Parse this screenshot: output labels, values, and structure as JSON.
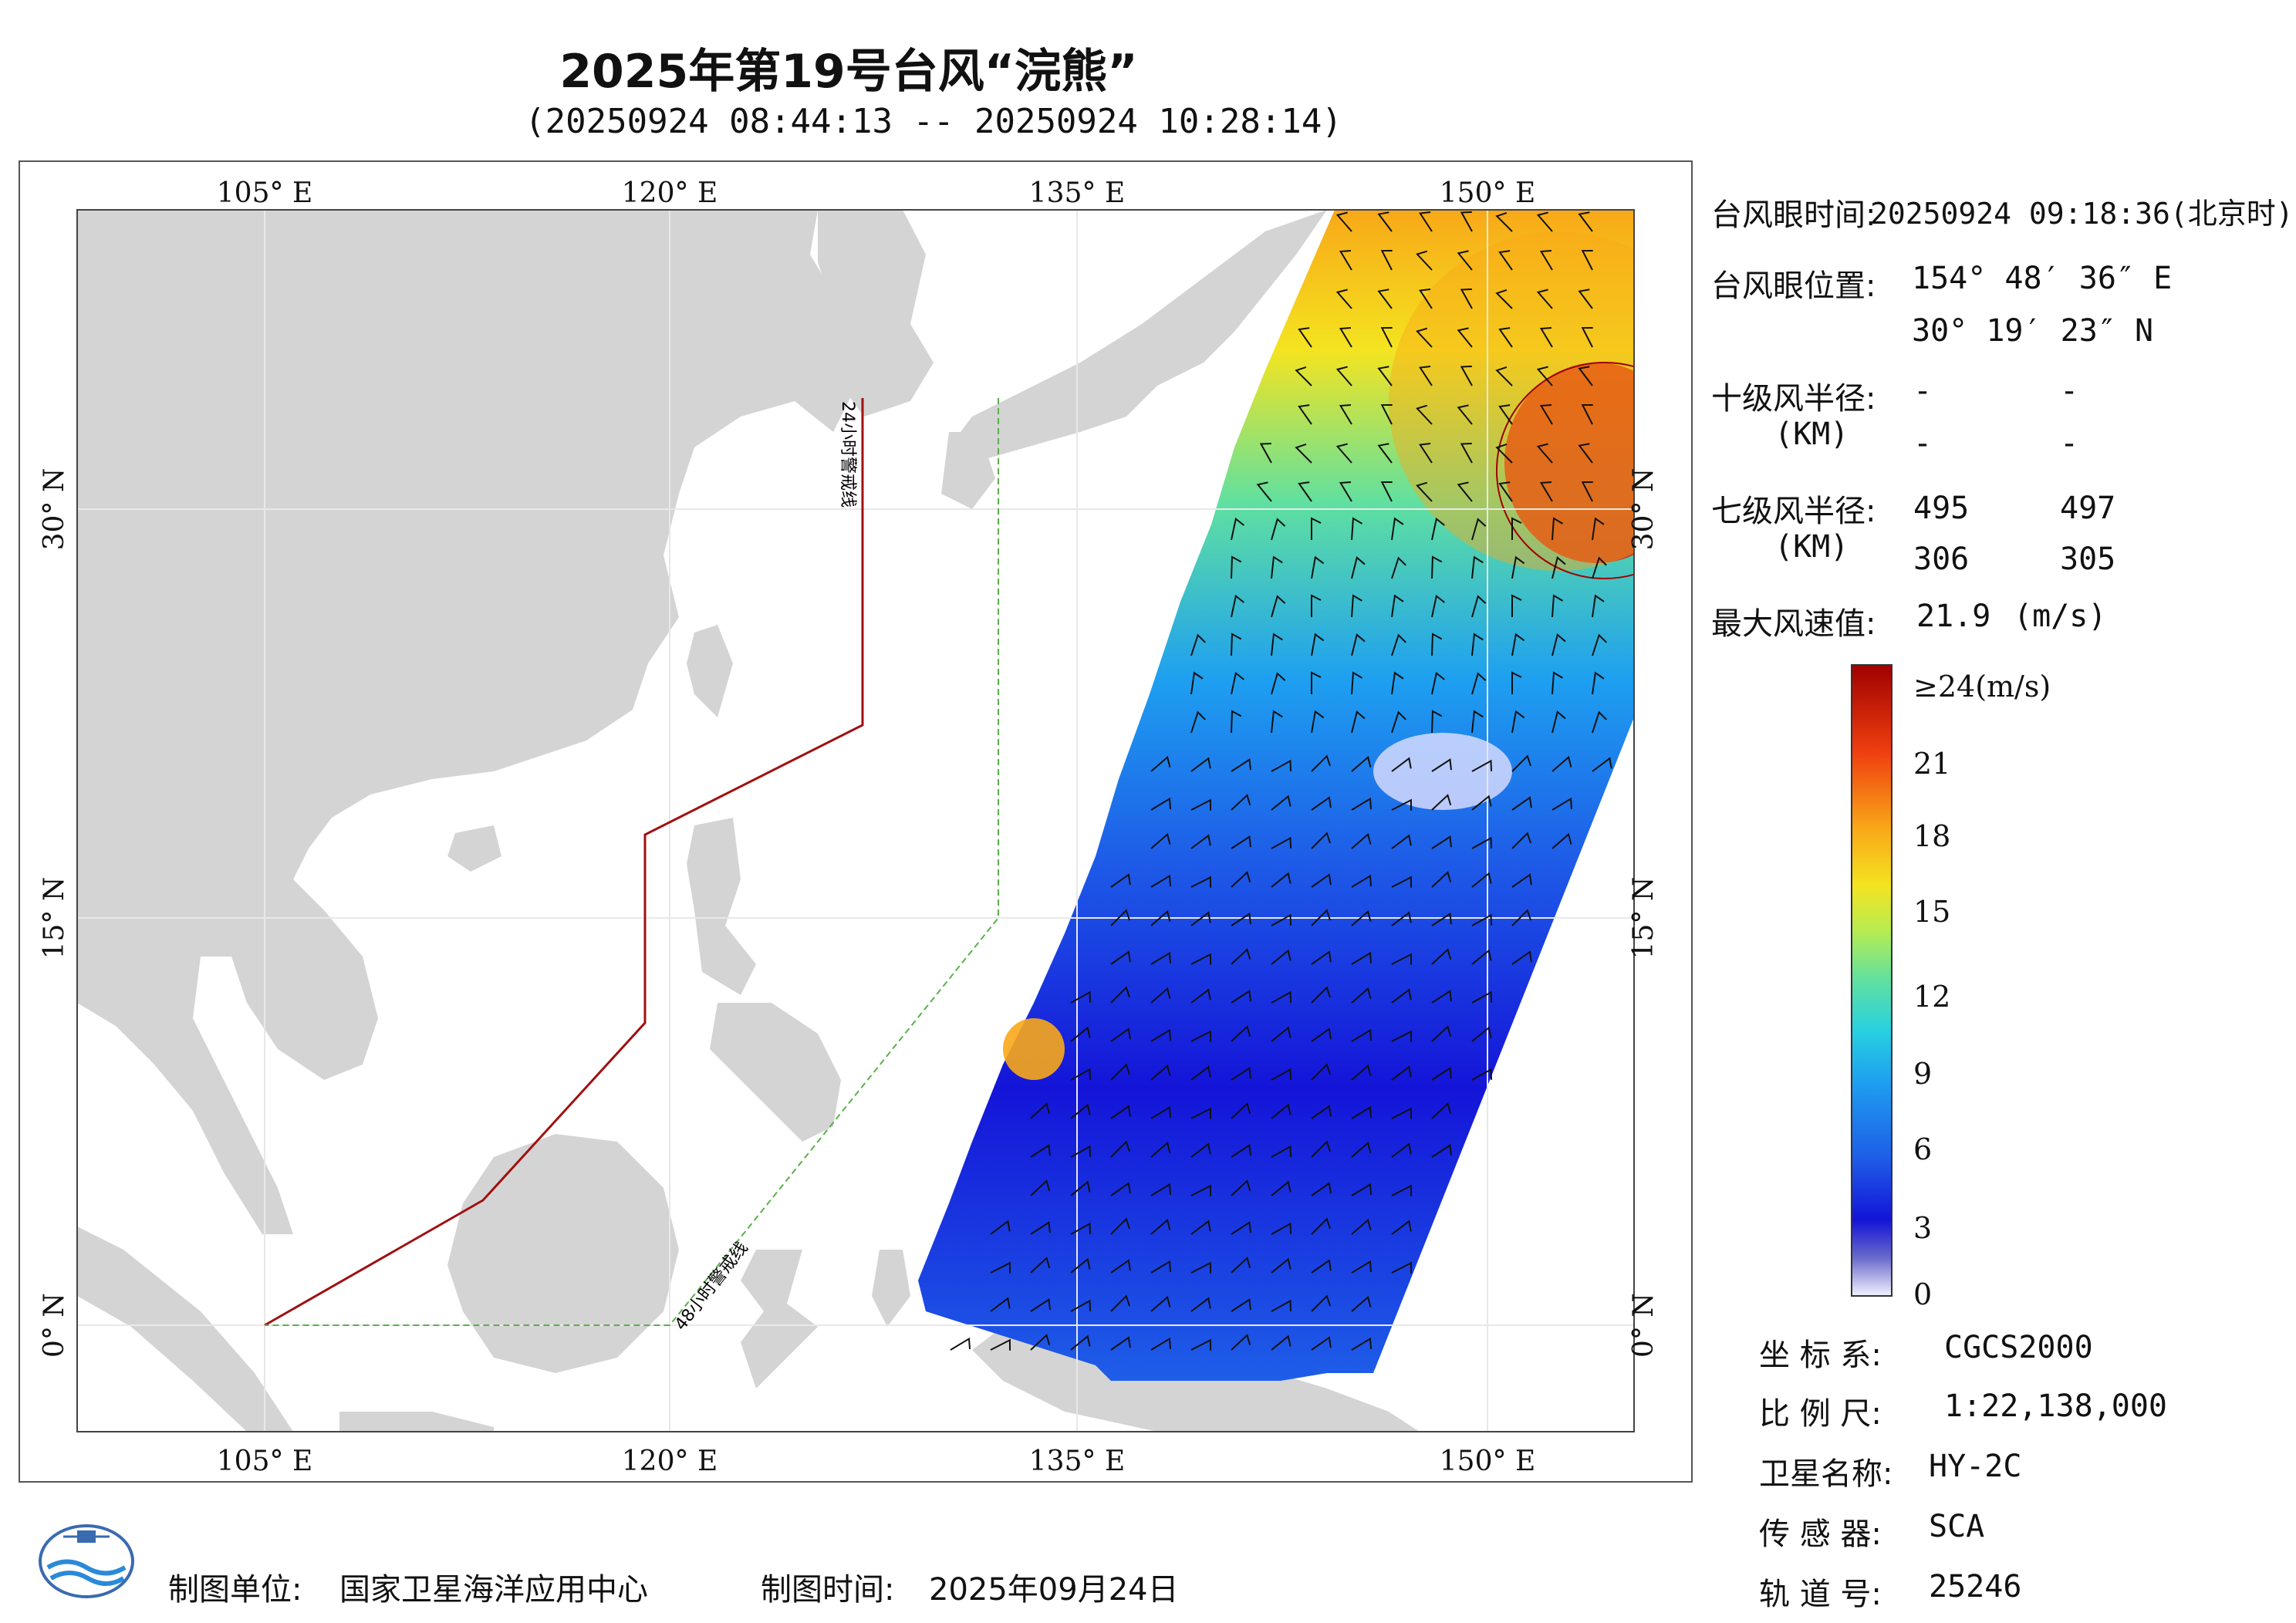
{
  "header": {
    "title": "2025年第19号台风“浣熊”",
    "subtitle": "(20250924 08:44:13 -- 20250924 10:28:14)"
  },
  "map": {
    "lon_ticks": [
      "105° E",
      "120° E",
      "135° E",
      "150° E"
    ],
    "lat_ticks": [
      "30° N",
      "15° N",
      "0° N"
    ],
    "warning_24h": "24小时警戒线",
    "warning_48h": "48小时警戒线",
    "colors": {
      "land": "#d4d4d4",
      "sea": "#ffffff",
      "line24": "#a01010",
      "line48": "#5ab04a"
    }
  },
  "info": {
    "eye_time_label": "台风眼时间:",
    "eye_time": "20250924 09:18:36(北京时)",
    "eye_pos_label": "台风眼位置:",
    "eye_lon": "154° 48′ 36″ E",
    "eye_lat": "30° 19′ 23″ N",
    "r10_label": "十级风半径:",
    "r10_unit": "(KM)",
    "r10_values": [
      "-",
      "-",
      "-",
      "-"
    ],
    "r7_label": "七级风半径:",
    "r7_unit": "(KM)",
    "r7_values": [
      "495",
      "497",
      "306",
      "305"
    ],
    "maxwind_label": "最大风速值:",
    "maxwind_value": "21.9",
    "maxwind_unit": "(m/s)"
  },
  "colorbar": {
    "labels": [
      "≥24(m/s)",
      "21",
      "18",
      "15",
      "12",
      "9",
      "6",
      "3",
      "0"
    ],
    "stops": [
      "#f2f2ff",
      "#6a6acc",
      "#1414d8",
      "#1e5ee8",
      "#1ea0f0",
      "#28d0e0",
      "#60e0a0",
      "#b8ec50",
      "#f4e420",
      "#f8a818",
      "#f04010",
      "#a00000"
    ]
  },
  "meta": {
    "crs_label": "坐 标 系:",
    "crs": "CGCS2000",
    "scale_label": "比 例 尺:",
    "scale": "1:22,138,000",
    "sat_label": "卫星名称:",
    "sat": "HY-2C",
    "sensor_label": "传 感 器:",
    "sensor": "SCA",
    "orbit_label": "轨 道 号:",
    "orbit": "25246"
  },
  "footer": {
    "producer_label": "制图单位:",
    "producer": "国家卫星海洋应用中心",
    "date_label": "制图时间:",
    "date": "2025年09月24日"
  }
}
